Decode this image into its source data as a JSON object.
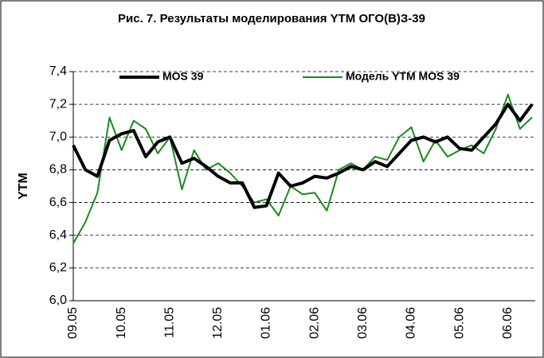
{
  "chart_data": {
    "type": "line",
    "title": "Рис. 7. Результаты моделирования YTM ОГО(В)З-39",
    "y_label": "YTM",
    "categories": [
      "09.05",
      null,
      null,
      null,
      "10.05",
      null,
      null,
      null,
      "11.05",
      null,
      null,
      null,
      "12.05",
      null,
      null,
      null,
      "01.06",
      null,
      null,
      null,
      "02.06",
      null,
      null,
      null,
      "03.06",
      null,
      null,
      null,
      "04.06",
      null,
      null,
      null,
      "05.06",
      null,
      null,
      null,
      "06.06",
      null,
      null
    ],
    "series": [
      {
        "name": "MOS 39",
        "color": "#000000",
        "width": 4,
        "values": [
          6.95,
          6.8,
          6.76,
          6.98,
          7.02,
          7.04,
          6.88,
          6.97,
          7.0,
          6.84,
          6.87,
          6.82,
          6.76,
          6.72,
          6.72,
          6.57,
          6.58,
          6.78,
          6.7,
          6.72,
          6.76,
          6.75,
          6.78,
          6.82,
          6.8,
          6.85,
          6.82,
          6.9,
          6.98,
          7.0,
          6.97,
          7.0,
          6.93,
          6.92,
          7.0,
          7.08,
          7.2,
          7.1,
          7.2
        ]
      },
      {
        "name": "Модель YTM MOS 39",
        "color": "#1a8a1a",
        "width": 2,
        "values": [
          6.35,
          6.48,
          6.66,
          7.12,
          6.92,
          7.1,
          7.05,
          6.9,
          7.0,
          6.68,
          6.92,
          6.8,
          6.84,
          6.78,
          6.7,
          6.6,
          6.62,
          6.52,
          6.7,
          6.65,
          6.66,
          6.55,
          6.8,
          6.84,
          6.8,
          6.88,
          6.86,
          7.0,
          7.06,
          6.85,
          6.98,
          6.88,
          6.92,
          6.95,
          6.9,
          7.05,
          7.26,
          7.05,
          7.12
        ]
      }
    ],
    "ylim": [
      6.0,
      7.4
    ],
    "yticks": [
      {
        "value": 6.0,
        "label": "6,0"
      },
      {
        "value": 6.2,
        "label": "6,2"
      },
      {
        "value": 6.4,
        "label": "6,4"
      },
      {
        "value": 6.6,
        "label": "6,6"
      },
      {
        "value": 6.8,
        "label": "6,8"
      },
      {
        "value": 7.0,
        "label": "7,0"
      },
      {
        "value": 7.2,
        "label": "7,2"
      },
      {
        "value": 7.4,
        "label": "7,4"
      }
    ],
    "grid": true
  }
}
